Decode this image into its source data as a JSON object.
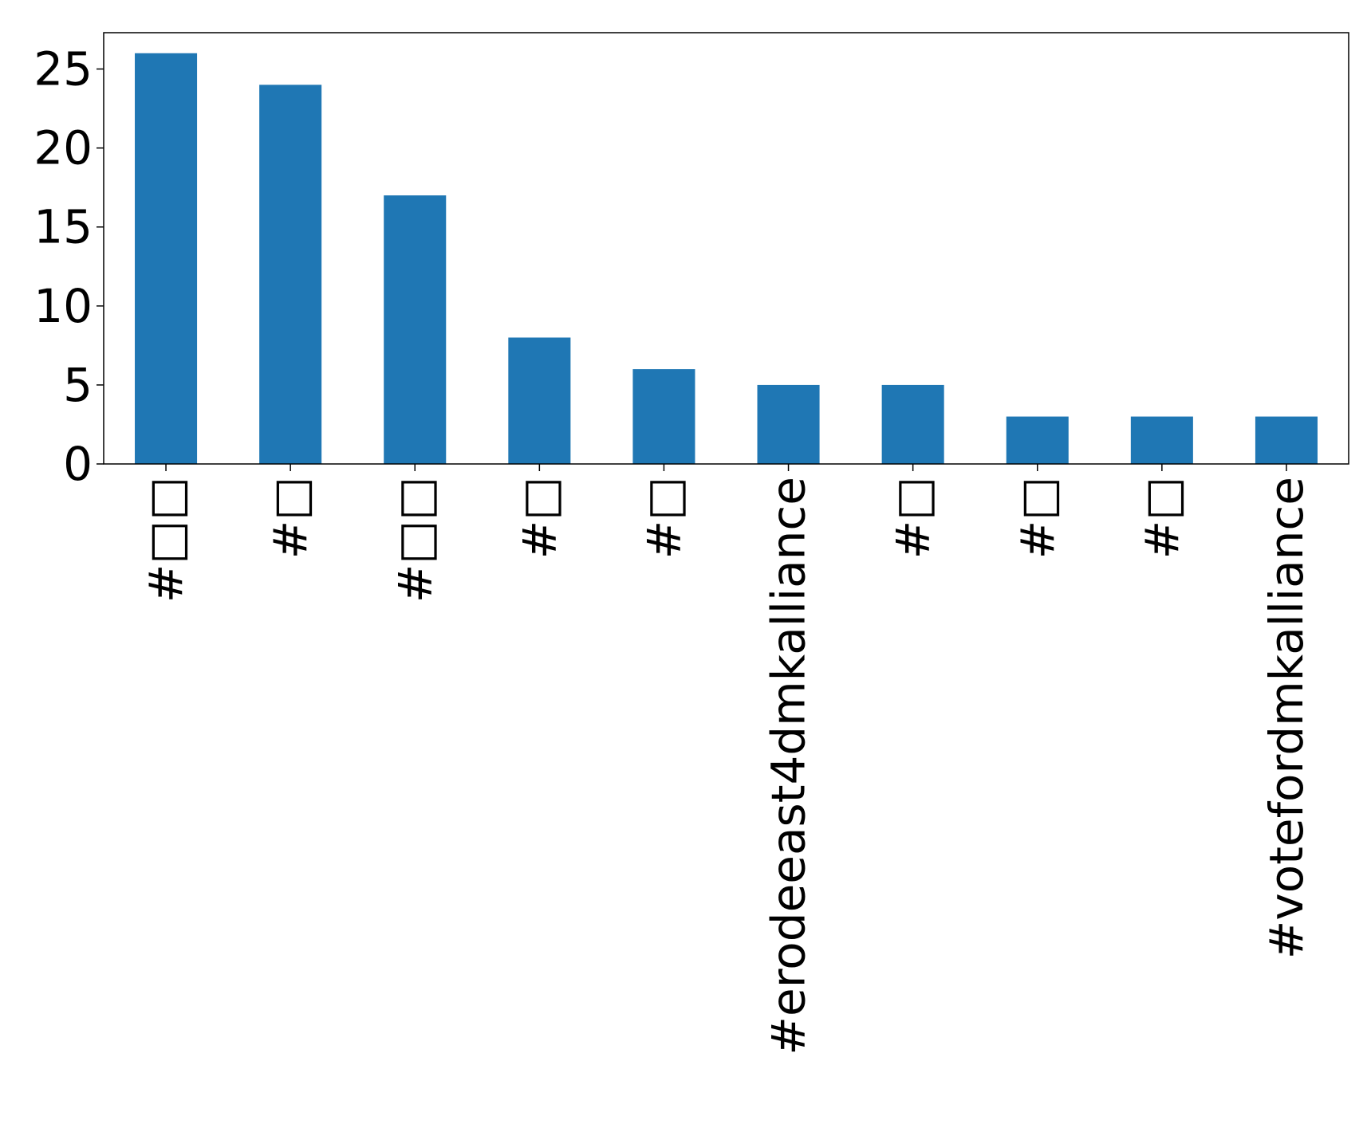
{
  "chart_data": {
    "type": "bar",
    "title": "",
    "xlabel": "",
    "ylabel": "",
    "categories": [
      "#□□",
      "#□",
      "#□□",
      "#□",
      "#□",
      "#erodeeast4dmkalliance",
      "#□",
      "#□",
      "#□",
      "#votefordmkalliance"
    ],
    "values": [
      26,
      24,
      17,
      8,
      6,
      5,
      5,
      3,
      3,
      3
    ],
    "ylim": [
      0,
      27.3
    ],
    "yticks": [
      0,
      5,
      10,
      15,
      20,
      25
    ],
    "grid": false,
    "legend": "none",
    "colors": {
      "bar": "#1f77b4",
      "axis": "#000000"
    }
  }
}
